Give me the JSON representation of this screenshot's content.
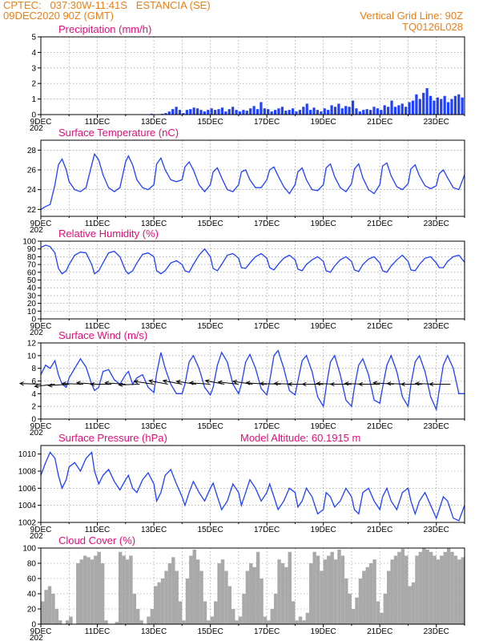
{
  "header": {
    "left_line1": "CPTEC:   037:30W-11:41S   ESTANCIA (SE)",
    "left_line2": "09DEC2020 90Z (GMT)",
    "right_line1": "Vertical Grid Line: 90Z",
    "right_line2": "TQ0126L028"
  },
  "colors": {
    "line": "#2040ff",
    "bar": "#2040ff",
    "cloud": "#a9a9a9",
    "title": "#e0107a",
    "header": "#e8801a"
  },
  "x_axis": {
    "labels": [
      "9DEC",
      "11DEC",
      "13DEC",
      "15DEC",
      "17DEC",
      "19DEC",
      "21DEC",
      "23DEC"
    ],
    "label_days": [
      0,
      2,
      4,
      6,
      8,
      10,
      12,
      14
    ],
    "x_range_days": [
      0,
      15
    ],
    "year_fragment": "202"
  },
  "chart_data": [
    {
      "id": "precip",
      "type": "bar",
      "title": "Precipitation (mm/h)",
      "ylim": [
        0,
        5
      ],
      "yticks": [
        0,
        1,
        2,
        3,
        4,
        5
      ],
      "x_step_hours": 3,
      "values": [
        0,
        0,
        0,
        0,
        0,
        0,
        0,
        0,
        0,
        0,
        0,
        0,
        0,
        0,
        0,
        0,
        0,
        0,
        0,
        0,
        0,
        0,
        0,
        0,
        0,
        0,
        0,
        0,
        0,
        0,
        0,
        0.05,
        0.02,
        0.03,
        0.05,
        0.1,
        0.2,
        0.35,
        0.5,
        0.3,
        0.1,
        0.3,
        0.35,
        0.45,
        0.4,
        0.3,
        0.2,
        0.3,
        0.4,
        0.3,
        0.35,
        0.45,
        0.2,
        0.35,
        0.5,
        0.3,
        0.2,
        0.3,
        0.25,
        0.4,
        0.55,
        0.35,
        0.8,
        0.4,
        0.35,
        0.2,
        0.3,
        0.4,
        0.5,
        0.25,
        0.3,
        0.4,
        0.2,
        0.3,
        0.5,
        0.7,
        0.3,
        0.45,
        0.3,
        0.2,
        0.4,
        0.3,
        0.6,
        0.5,
        0.7,
        0.4,
        0.55,
        0.5,
        0.9,
        0.4,
        0.2,
        0.3,
        0.35,
        0.3,
        0.5,
        0.4,
        0.3,
        0.6,
        0.5,
        0.9,
        0.5,
        0.6,
        0.7,
        0.5,
        0.8,
        0.9,
        1.3,
        1.0,
        1.4,
        1.7,
        1.2,
        0.9,
        1.1,
        1.0,
        1.2,
        0.8,
        1.0,
        1.2,
        1.3,
        1.1
      ]
    },
    {
      "id": "temp",
      "type": "line",
      "title": "Surface Temperature (nC)",
      "ylim": [
        21.3,
        29
      ],
      "yticks": [
        22,
        24,
        26,
        28
      ],
      "x": [
        0,
        0.17,
        0.33,
        0.5,
        0.62,
        0.75,
        0.9,
        1.0,
        1.2,
        1.4,
        1.6,
        1.8,
        1.9,
        2.05,
        2.2,
        2.4,
        2.6,
        2.8,
        3.0,
        3.1,
        3.25,
        3.4,
        3.6,
        3.8,
        4.0,
        4.1,
        4.25,
        4.4,
        4.6,
        4.8,
        5.0,
        5.1,
        5.25,
        5.4,
        5.6,
        5.8,
        6.0,
        6.1,
        6.25,
        6.4,
        6.6,
        6.8,
        7.0,
        7.1,
        7.25,
        7.4,
        7.6,
        7.8,
        8.0,
        8.1,
        8.25,
        8.4,
        8.6,
        8.8,
        9.0,
        9.1,
        9.25,
        9.4,
        9.6,
        9.8,
        10.0,
        10.1,
        10.25,
        10.4,
        10.6,
        10.8,
        11.0,
        11.1,
        11.25,
        11.4,
        11.6,
        11.8,
        12.0,
        12.1,
        12.25,
        12.4,
        12.6,
        12.8,
        13.0,
        13.1,
        13.25,
        13.4,
        13.6,
        13.8,
        14.0,
        14.1,
        14.25,
        14.4,
        14.6,
        14.8,
        15.0
      ],
      "y": [
        22.0,
        22.3,
        22.5,
        24.5,
        26.5,
        27.1,
        26.0,
        24.8,
        24.0,
        23.8,
        24.2,
        26.5,
        27.6,
        27.0,
        25.5,
        24.2,
        23.8,
        24.2,
        26.8,
        27.4,
        26.5,
        25.0,
        24.2,
        24.0,
        24.5,
        26.6,
        27.2,
        26.0,
        25.0,
        24.8,
        25.0,
        26.3,
        26.8,
        26.0,
        24.5,
        23.8,
        24.5,
        25.8,
        26.2,
        25.2,
        24.0,
        23.8,
        24.5,
        25.8,
        26.0,
        25.0,
        24.2,
        24.2,
        25.0,
        26.0,
        26.3,
        25.4,
        24.3,
        23.6,
        24.5,
        25.8,
        26.2,
        25.0,
        24.0,
        23.9,
        24.5,
        26.2,
        26.6,
        25.3,
        24.2,
        23.8,
        24.6,
        26.1,
        26.6,
        25.2,
        24.0,
        23.6,
        24.5,
        26.4,
        26.7,
        25.4,
        24.3,
        24.0,
        24.6,
        26.1,
        26.5,
        25.4,
        24.4,
        24.1,
        24.4,
        25.6,
        26.0,
        25.2,
        24.2,
        24.0,
        25.5
      ]
    },
    {
      "id": "rh",
      "type": "line",
      "title": "Relative Humidity (%)",
      "ylim": [
        0,
        100
      ],
      "yticks": [
        0,
        10,
        20,
        30,
        40,
        50,
        60,
        70,
        80,
        90,
        100
      ],
      "x": [
        0,
        0.17,
        0.33,
        0.5,
        0.62,
        0.75,
        0.9,
        1.0,
        1.2,
        1.4,
        1.6,
        1.8,
        1.9,
        2.05,
        2.2,
        2.4,
        2.6,
        2.8,
        3.0,
        3.1,
        3.25,
        3.4,
        3.6,
        3.8,
        4.0,
        4.1,
        4.25,
        4.4,
        4.6,
        4.8,
        5.0,
        5.1,
        5.25,
        5.4,
        5.6,
        5.8,
        6.0,
        6.1,
        6.25,
        6.4,
        6.6,
        6.8,
        7.0,
        7.1,
        7.25,
        7.4,
        7.6,
        7.8,
        8.0,
        8.1,
        8.25,
        8.4,
        8.6,
        8.8,
        9.0,
        9.1,
        9.25,
        9.4,
        9.6,
        9.8,
        10.0,
        10.1,
        10.25,
        10.4,
        10.6,
        10.8,
        11.0,
        11.1,
        11.25,
        11.4,
        11.6,
        11.8,
        12.0,
        12.1,
        12.25,
        12.4,
        12.6,
        12.8,
        13.0,
        13.1,
        13.25,
        13.4,
        13.6,
        13.8,
        14.0,
        14.1,
        14.25,
        14.4,
        14.6,
        14.8,
        15.0
      ],
      "y": [
        92,
        95,
        93,
        85,
        65,
        58,
        62,
        70,
        82,
        86,
        85,
        70,
        58,
        62,
        72,
        85,
        87,
        80,
        62,
        58,
        62,
        72,
        83,
        85,
        80,
        62,
        58,
        62,
        72,
        75,
        70,
        62,
        60,
        70,
        82,
        90,
        80,
        65,
        62,
        70,
        82,
        84,
        78,
        66,
        65,
        72,
        80,
        84,
        78,
        66,
        63,
        70,
        78,
        82,
        76,
        64,
        62,
        70,
        76,
        80,
        74,
        62,
        60,
        68,
        76,
        80,
        74,
        63,
        61,
        70,
        77,
        80,
        72,
        62,
        60,
        68,
        76,
        82,
        74,
        63,
        62,
        70,
        78,
        80,
        72,
        66,
        66,
        74,
        80,
        82,
        73
      ]
    },
    {
      "id": "wind",
      "type": "line",
      "title": "Surface Wind (m/s)",
      "ylim": [
        0,
        12
      ],
      "yticks": [
        0,
        2,
        4,
        6,
        8,
        10,
        12
      ],
      "x": [
        0,
        0.17,
        0.33,
        0.5,
        0.62,
        0.75,
        0.9,
        1.0,
        1.2,
        1.4,
        1.6,
        1.8,
        1.9,
        2.05,
        2.2,
        2.4,
        2.6,
        2.8,
        3.0,
        3.1,
        3.25,
        3.4,
        3.6,
        3.8,
        4.0,
        4.1,
        4.25,
        4.4,
        4.6,
        4.8,
        5.0,
        5.1,
        5.25,
        5.4,
        5.6,
        5.8,
        6.0,
        6.1,
        6.25,
        6.4,
        6.6,
        6.8,
        7.0,
        7.1,
        7.25,
        7.4,
        7.6,
        7.8,
        8.0,
        8.1,
        8.25,
        8.4,
        8.6,
        8.8,
        9.0,
        9.1,
        9.25,
        9.4,
        9.6,
        9.8,
        10.0,
        10.1,
        10.25,
        10.4,
        10.6,
        10.8,
        11.0,
        11.1,
        11.25,
        11.4,
        11.6,
        11.8,
        12.0,
        12.1,
        12.25,
        12.4,
        12.6,
        12.8,
        13.0,
        13.1,
        13.25,
        13.4,
        13.6,
        13.8,
        14.0,
        14.1,
        14.25,
        14.4,
        14.6,
        14.8,
        15.0
      ],
      "y": [
        7.0,
        8.5,
        8.0,
        9.2,
        7.0,
        5.5,
        5.0,
        6.5,
        8.0,
        9.5,
        8.2,
        5.5,
        4.5,
        5.0,
        7.5,
        7.8,
        6.2,
        5.5,
        7.0,
        7.5,
        5.5,
        6.5,
        7.0,
        5.0,
        4.2,
        7.2,
        10.5,
        8.0,
        5.5,
        4.0,
        4.0,
        5.5,
        9.0,
        10.0,
        8.0,
        5.0,
        3.8,
        5.0,
        8.5,
        10.5,
        9.0,
        5.5,
        4.0,
        5.5,
        9.0,
        10.2,
        8.0,
        4.8,
        3.8,
        6.0,
        10.0,
        10.8,
        8.0,
        4.5,
        3.8,
        6.0,
        9.2,
        10.0,
        7.5,
        3.5,
        2.0,
        5.0,
        9.0,
        10.0,
        7.0,
        3.0,
        2.0,
        5.0,
        8.5,
        9.5,
        7.0,
        3.0,
        2.5,
        5.0,
        8.5,
        10.0,
        7.5,
        3.5,
        2.0,
        5.5,
        9.0,
        10.0,
        7.5,
        3.5,
        1.5,
        4.5,
        8.5,
        10.0,
        8.0,
        4.0,
        4.0
      ],
      "arrows_direction_deg_from": [
        95,
        75,
        80,
        95,
        100,
        90,
        100,
        85,
        110,
        115,
        115,
        110,
        100,
        115,
        105,
        110,
        100,
        95,
        95,
        90,
        90,
        95,
        90,
        95,
        90,
        100,
        95,
        90,
        95,
        90
      ]
    },
    {
      "id": "pres",
      "type": "line",
      "title": "Surface Pressure (hPa)",
      "annotation": "Model Altitude: 60.1915 m",
      "ylim": [
        1002,
        1011
      ],
      "yticks": [
        1002,
        1004,
        1006,
        1008,
        1010
      ],
      "x": [
        0,
        0.17,
        0.33,
        0.5,
        0.62,
        0.75,
        0.9,
        1.0,
        1.2,
        1.4,
        1.6,
        1.8,
        1.9,
        2.05,
        2.2,
        2.4,
        2.6,
        2.8,
        3.0,
        3.1,
        3.25,
        3.4,
        3.6,
        3.8,
        4.0,
        4.1,
        4.25,
        4.4,
        4.6,
        4.8,
        5.0,
        5.1,
        5.25,
        5.4,
        5.6,
        5.8,
        6.0,
        6.1,
        6.25,
        6.4,
        6.6,
        6.8,
        7.0,
        7.1,
        7.25,
        7.4,
        7.6,
        7.8,
        8.0,
        8.1,
        8.25,
        8.4,
        8.6,
        8.8,
        9.0,
        9.1,
        9.25,
        9.4,
        9.6,
        9.8,
        10.0,
        10.1,
        10.25,
        10.4,
        10.6,
        10.8,
        11.0,
        11.1,
        11.25,
        11.4,
        11.6,
        11.8,
        12.0,
        12.1,
        12.25,
        12.4,
        12.6,
        12.8,
        13.0,
        13.1,
        13.25,
        13.4,
        13.6,
        13.8,
        14.0,
        14.1,
        14.25,
        14.4,
        14.6,
        14.8,
        15.0
      ],
      "y": [
        1007.5,
        1009.0,
        1010.2,
        1009.5,
        1007.5,
        1006.0,
        1007.0,
        1008.5,
        1009.0,
        1008.0,
        1009.5,
        1010.2,
        1008.0,
        1006.5,
        1007.5,
        1008.2,
        1006.8,
        1005.8,
        1007.0,
        1007.5,
        1006.0,
        1005.5,
        1007.0,
        1007.8,
        1006.5,
        1004.5,
        1005.5,
        1007.5,
        1008.2,
        1006.5,
        1005.0,
        1004.0,
        1005.5,
        1006.8,
        1005.5,
        1004.5,
        1006.0,
        1006.6,
        1005.0,
        1003.5,
        1004.5,
        1006.5,
        1005.5,
        1004.0,
        1005.5,
        1007.0,
        1006.0,
        1004.5,
        1005.5,
        1006.5,
        1005.0,
        1003.5,
        1004.5,
        1006.0,
        1005.5,
        1003.8,
        1004.5,
        1006.0,
        1005.0,
        1003.0,
        1003.5,
        1005.5,
        1005.0,
        1003.8,
        1004.5,
        1006.0,
        1005.0,
        1003.5,
        1003.0,
        1005.5,
        1006.0,
        1004.5,
        1003.5,
        1005.0,
        1006.0,
        1004.5,
        1003.5,
        1005.5,
        1006.0,
        1004.5,
        1003.0,
        1004.5,
        1005.5,
        1004.0,
        1002.5,
        1003.5,
        1005.0,
        1004.5,
        1002.5,
        1002.2,
        1004.0
      ]
    },
    {
      "id": "cloud",
      "type": "bar",
      "title": "Cloud Cover (%)",
      "ylim": [
        0,
        100
      ],
      "yticks": [
        0,
        20,
        40,
        60,
        80,
        100
      ],
      "x_step_hours": 3,
      "values": [
        30,
        45,
        50,
        40,
        20,
        5,
        0,
        5,
        10,
        0,
        80,
        85,
        90,
        88,
        85,
        90,
        95,
        80,
        5,
        0,
        0,
        3,
        95,
        90,
        85,
        90,
        40,
        20,
        5,
        0,
        10,
        20,
        50,
        55,
        60,
        70,
        80,
        88,
        70,
        30,
        5,
        60,
        90,
        98,
        85,
        70,
        30,
        5,
        10,
        30,
        80,
        85,
        70,
        50,
        20,
        5,
        10,
        40,
        70,
        80,
        75,
        95,
        60,
        10,
        5,
        20,
        40,
        85,
        80,
        75,
        95,
        30,
        5,
        10,
        5,
        15,
        80,
        95,
        90,
        70,
        85,
        90,
        95,
        85,
        98,
        90,
        60,
        40,
        20,
        35,
        60,
        70,
        75,
        80,
        85,
        30,
        15,
        40,
        70,
        85,
        90,
        95,
        99,
        90,
        50,
        55,
        90,
        95,
        100,
        98,
        95,
        90,
        85,
        90,
        95,
        100,
        95,
        90,
        85,
        88
      ]
    }
  ]
}
